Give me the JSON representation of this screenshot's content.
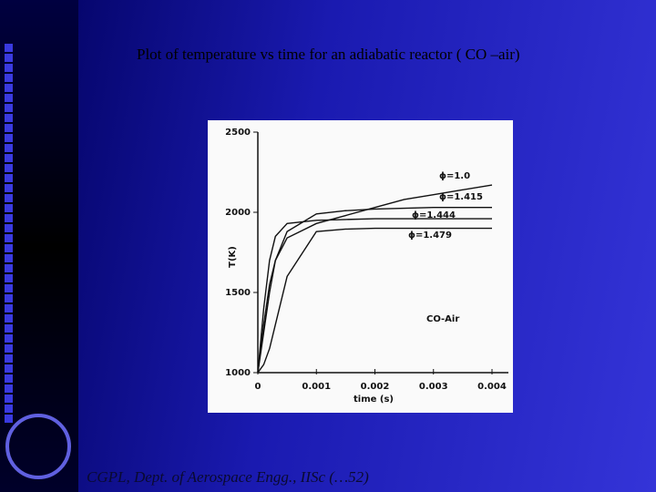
{
  "slide": {
    "title": "Plot of temperature vs time for an adiabatic reactor ( CO –air)",
    "footer": "CGPL, Dept. of Aerospace Engg., IISc (…52)"
  },
  "chart_data": {
    "type": "line",
    "xlabel": "time (s)",
    "ylabel": "T(K)",
    "annotation": "CO-Air",
    "x": [
      0,
      0.0001,
      0.0002,
      0.0003,
      0.0005,
      0.001,
      0.0015,
      0.002,
      0.0025,
      0.003,
      0.0035,
      0.004
    ],
    "series": [
      {
        "name": "ϕ=1.0",
        "color": "#111111",
        "values": [
          1000,
          1300,
          1550,
          1700,
          1840,
          1930,
          1980,
          2030,
          2080,
          2110,
          2140,
          2170
        ]
      },
      {
        "name": "ϕ=1.415",
        "color": "#111111",
        "values": [
          1000,
          1250,
          1500,
          1700,
          1880,
          1990,
          2010,
          2020,
          2025,
          2030,
          2030,
          2030
        ]
      },
      {
        "name": "ϕ=1.444",
        "color": "#111111",
        "values": [
          1000,
          1400,
          1700,
          1850,
          1930,
          1950,
          1955,
          1960,
          1960,
          1960,
          1960,
          1960
        ]
      },
      {
        "name": "ϕ=1.479",
        "color": "#111111",
        "values": [
          1000,
          1050,
          1150,
          1300,
          1600,
          1880,
          1895,
          1900,
          1900,
          1900,
          1900,
          1900
        ]
      }
    ],
    "xlim": [
      0,
      0.004
    ],
    "ylim": [
      1000,
      2500
    ],
    "xticks": [
      0,
      0.001,
      0.002,
      0.003,
      0.004
    ],
    "yticks": [
      1000,
      1500,
      2000,
      2500
    ]
  }
}
